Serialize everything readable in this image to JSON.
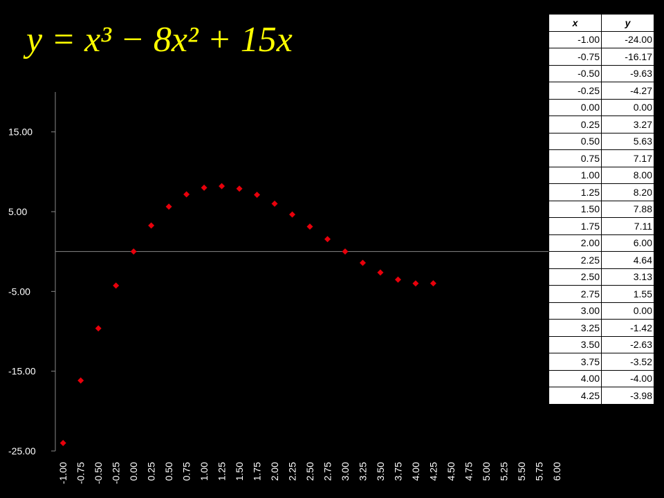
{
  "chart_data": {
    "type": "scatter",
    "title": "y = x³ − 8x² + 15x",
    "x": [
      -1,
      -0.75,
      -0.5,
      -0.25,
      0,
      0.25,
      0.5,
      0.75,
      1,
      1.25,
      1.5,
      1.75,
      2,
      2.25,
      2.5,
      2.75,
      3,
      3.25,
      3.5,
      3.75,
      4,
      4.25
    ],
    "series": [
      {
        "color": "#e8000b",
        "values": [
          -24,
          -16.17,
          -9.63,
          -4.27,
          0,
          3.27,
          5.63,
          7.17,
          8,
          8.2,
          7.88,
          7.11,
          6,
          4.64,
          3.13,
          1.55,
          0,
          -1.42,
          -2.63,
          -3.52,
          -4,
          -3.98
        ]
      }
    ],
    "xlim": [
      -1.11,
      6.1
    ],
    "ylim": [
      -25,
      20
    ],
    "xticks": [
      {
        "value": -1,
        "label": "-1.00"
      },
      {
        "value": -0.75,
        "label": "-0.75"
      },
      {
        "value": -0.5,
        "label": "-0.50"
      },
      {
        "value": -0.25,
        "label": "-0.25"
      },
      {
        "value": 0,
        "label": "0.00"
      },
      {
        "value": 0.25,
        "label": "0.25"
      },
      {
        "value": 0.5,
        "label": "0.50"
      },
      {
        "value": 0.75,
        "label": "0.75"
      },
      {
        "value": 1,
        "label": "1.00"
      },
      {
        "value": 1.25,
        "label": "1.25"
      },
      {
        "value": 1.5,
        "label": "1.50"
      },
      {
        "value": 1.75,
        "label": "1.75"
      },
      {
        "value": 2,
        "label": "2.00"
      },
      {
        "value": 2.25,
        "label": "2.25"
      },
      {
        "value": 2.5,
        "label": "2.50"
      },
      {
        "value": 2.75,
        "label": "2.75"
      },
      {
        "value": 3,
        "label": "3.00"
      },
      {
        "value": 3.25,
        "label": "3.25"
      },
      {
        "value": 3.5,
        "label": "3.50"
      },
      {
        "value": 3.75,
        "label": "3.75"
      },
      {
        "value": 4,
        "label": "4.00"
      },
      {
        "value": 4.25,
        "label": "4.25"
      },
      {
        "value": 4.5,
        "label": "4.50"
      },
      {
        "value": 4.75,
        "label": "4.75"
      },
      {
        "value": 5,
        "label": "5.00"
      },
      {
        "value": 5.25,
        "label": "5.25"
      },
      {
        "value": 5.5,
        "label": "5.50"
      },
      {
        "value": 5.75,
        "label": "5.75"
      },
      {
        "value": 6,
        "label": "6.00"
      }
    ],
    "yticks": [
      {
        "value": -25,
        "label": "-25.00"
      },
      {
        "value": -15,
        "label": "-15.00"
      },
      {
        "value": -5,
        "label": "-5.00"
      },
      {
        "value": 5,
        "label": "5.00"
      },
      {
        "value": 15,
        "label": "15.00"
      }
    ]
  },
  "table": {
    "header": [
      "x",
      "y"
    ],
    "rows": [
      [
        "-1.00",
        "-24.00"
      ],
      [
        "-0.75",
        "-16.17"
      ],
      [
        "-0.50",
        "-9.63"
      ],
      [
        "-0.25",
        "-4.27"
      ],
      [
        "0.00",
        "0.00"
      ],
      [
        "0.25",
        "3.27"
      ],
      [
        "0.50",
        "5.63"
      ],
      [
        "0.75",
        "7.17"
      ],
      [
        "1.00",
        "8.00"
      ],
      [
        "1.25",
        "8.20"
      ],
      [
        "1.50",
        "7.88"
      ],
      [
        "1.75",
        "7.11"
      ],
      [
        "2.00",
        "6.00"
      ],
      [
        "2.25",
        "4.64"
      ],
      [
        "2.50",
        "3.13"
      ],
      [
        "2.75",
        "1.55"
      ],
      [
        "3.00",
        "0.00"
      ],
      [
        "3.25",
        "-1.42"
      ],
      [
        "3.50",
        "-2.63"
      ],
      [
        "3.75",
        "-3.52"
      ],
      [
        "4.00",
        "-4.00"
      ],
      [
        "4.25",
        "-3.98"
      ]
    ]
  }
}
